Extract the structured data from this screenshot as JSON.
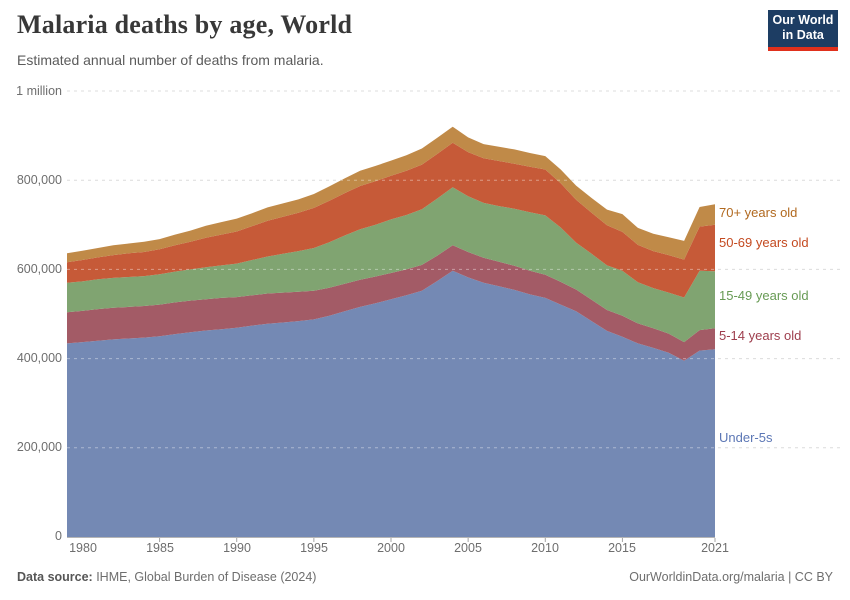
{
  "header": {
    "title": "Malaria deaths by age, World",
    "subtitle": "Estimated annual number of deaths from malaria."
  },
  "logo": {
    "line1": "Our World",
    "line2": "in Data",
    "bg_color": "#1d3d63",
    "bar_color": "#e0301c"
  },
  "axes": {
    "y": {
      "ticks": [
        {
          "label": "1 million",
          "value": 1000000
        },
        {
          "label": "800,000",
          "value": 800000
        },
        {
          "label": "600,000",
          "value": 600000
        },
        {
          "label": "400,000",
          "value": 400000
        },
        {
          "label": "200,000",
          "value": 200000
        },
        {
          "label": "0",
          "value": 0
        }
      ]
    },
    "x": {
      "ticks": [
        {
          "label": "1980",
          "year": 1980
        },
        {
          "label": "1985",
          "year": 1985
        },
        {
          "label": "1990",
          "year": 1990
        },
        {
          "label": "1995",
          "year": 1995
        },
        {
          "label": "2000",
          "year": 2000
        },
        {
          "label": "2005",
          "year": 2005
        },
        {
          "label": "2010",
          "year": 2010
        },
        {
          "label": "2015",
          "year": 2015
        },
        {
          "label": "2021",
          "year": 2021
        }
      ]
    }
  },
  "legend": {
    "position": "right",
    "items": [
      {
        "label": "70+ years old",
        "color": "#b1691f"
      },
      {
        "label": "50-69 years old",
        "color": "#c44a20"
      },
      {
        "label": "15-49 years old",
        "color": "#689b55"
      },
      {
        "label": "5-14 years old",
        "color": "#9e3e4d"
      },
      {
        "label": "Under-5s",
        "color": "#5c77b5"
      }
    ]
  },
  "chart_data": {
    "type": "area",
    "stacked": true,
    "title": "Malaria deaths by age, World",
    "xlabel": "",
    "ylabel": "Estimated annual deaths from malaria",
    "ylim": [
      0,
      1000000
    ],
    "grid": true,
    "gridline_values": [
      200000,
      400000,
      600000,
      800000,
      1000000
    ],
    "x": [
      1979,
      1980,
      1981,
      1982,
      1983,
      1984,
      1985,
      1986,
      1987,
      1988,
      1989,
      1990,
      1991,
      1992,
      1993,
      1994,
      1995,
      1996,
      1997,
      1998,
      1999,
      2000,
      2001,
      2002,
      2003,
      2004,
      2005,
      2006,
      2007,
      2008,
      2009,
      2010,
      2011,
      2012,
      2013,
      2014,
      2015,
      2016,
      2017,
      2018,
      2019,
      2020,
      2021
    ],
    "series": [
      {
        "name": "Under-5s",
        "fill_color": "#7489b4",
        "values": [
          434000,
          437000,
          440000,
          443000,
          445000,
          447000,
          450000,
          455000,
          459000,
          463000,
          466000,
          469000,
          474000,
          478000,
          481000,
          484000,
          488000,
          496000,
          506000,
          516000,
          524000,
          533000,
          542000,
          552000,
          574000,
          597000,
          582000,
          570000,
          562000,
          554000,
          544000,
          536000,
          521000,
          506000,
          484000,
          462000,
          449000,
          434000,
          424000,
          413000,
          395000,
          418000,
          421000
        ]
      },
      {
        "name": "5-14 years old",
        "fill_color": "#a35b66",
        "values": [
          70000,
          70000,
          71000,
          71000,
          71000,
          71000,
          71000,
          71000,
          71000,
          70000,
          70000,
          69000,
          68000,
          68000,
          67000,
          66000,
          64000,
          63000,
          62000,
          61000,
          60000,
          59000,
          58000,
          58000,
          57000,
          57000,
          57000,
          56000,
          55000,
          54000,
          53000,
          52000,
          51000,
          49000,
          48000,
          47000,
          47000,
          45000,
          44000,
          43000,
          42000,
          46000,
          47000
        ]
      },
      {
        "name": "15-49 years old",
        "fill_color": "#80a471",
        "values": [
          66000,
          66000,
          67000,
          67000,
          67000,
          67000,
          68000,
          69000,
          70000,
          72000,
          73000,
          75000,
          79000,
          83000,
          87000,
          91000,
          96000,
          102000,
          108000,
          113000,
          116000,
          120000,
          122000,
          125000,
          128000,
          130000,
          125000,
          123000,
          125000,
          128000,
          131000,
          133000,
          122000,
          105000,
          103000,
          100000,
          101000,
          92000,
          90000,
          92000,
          100000,
          133000,
          128000
        ]
      },
      {
        "name": "50-69 years old",
        "fill_color": "#c65a38",
        "values": [
          46000,
          48000,
          49000,
          51000,
          53000,
          54000,
          56000,
          59000,
          62000,
          66000,
          69000,
          72000,
          76000,
          80000,
          83000,
          86000,
          90000,
          93000,
          95000,
          97000,
          98000,
          98000,
          99000,
          100000,
          100000,
          100000,
          99000,
          100000,
          101000,
          101000,
          102000,
          103000,
          99000,
          96000,
          92000,
          90000,
          87000,
          84000,
          83000,
          84000,
          85000,
          99000,
          104000
        ]
      },
      {
        "name": "70+ years old",
        "fill_color": "#c08a48",
        "values": [
          20000,
          21000,
          21000,
          22000,
          22000,
          23000,
          23000,
          24000,
          25000,
          27000,
          28000,
          29000,
          29000,
          30000,
          30000,
          30000,
          31000,
          32000,
          33000,
          34000,
          34000,
          34000,
          35000,
          36000,
          36000,
          36000,
          33000,
          32000,
          32000,
          32000,
          31000,
          30000,
          31000,
          32000,
          33000,
          35000,
          40000,
          38000,
          39000,
          40000,
          42000,
          44000,
          46000
        ]
      }
    ]
  },
  "footer": {
    "source_prefix": "Data source:",
    "source_text": " IHME, Global Burden of Disease (2024)",
    "link_text": "OurWorldinData.org/malaria | CC BY"
  }
}
